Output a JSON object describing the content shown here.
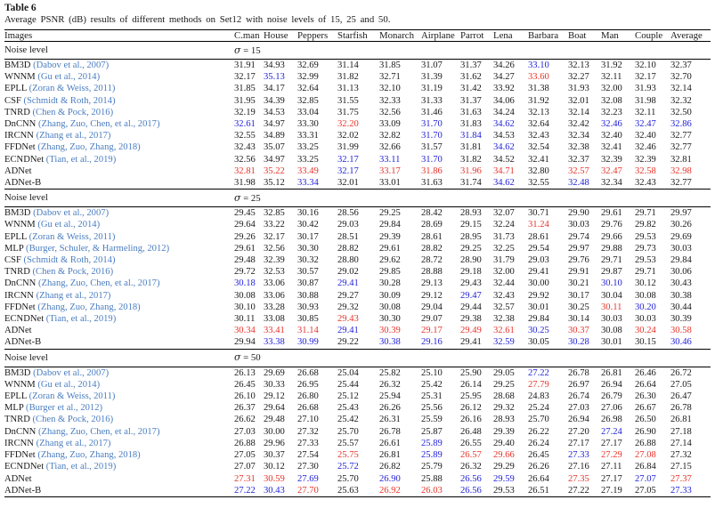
{
  "table": {
    "label": "Table 6",
    "caption": "Average PSNR (dB) results of different methods on Set12 with noise levels of 15, 25 and 50.",
    "noise_label": "Noise level",
    "columns": [
      "Images",
      "C.man",
      "House",
      "Peppers",
      "Starfish",
      "Monarch",
      "Airplane",
      "Parrot",
      "Lena",
      "Barbara",
      "Boat",
      "Man",
      "Couple",
      "Average"
    ],
    "value_colors": {
      "k": "#1a1a1a",
      "b": "#2323d8",
      "r": "#e7352b",
      "citation": "#4a7dc0"
    },
    "sections": [
      {
        "sigma": "σ = 15",
        "rows": [
          {
            "method": "BM3D",
            "cite": "(Dabov et al., 2007)",
            "values": [
              "31.91",
              "34.93",
              "32.69",
              "31.14",
              "31.85",
              "31.07",
              "31.37",
              "34.26",
              "33.10",
              "32.13",
              "31.92",
              "32.10",
              "32.37"
            ],
            "colors": "kkkkkkkkbkkkk"
          },
          {
            "method": "WNNM",
            "cite": "(Gu et al., 2014)",
            "values": [
              "32.17",
              "35.13",
              "32.99",
              "31.82",
              "32.71",
              "31.39",
              "31.62",
              "34.27",
              "33.60",
              "32.27",
              "32.11",
              "32.17",
              "32.70"
            ],
            "colors": "kbkkkkkkrkkkk"
          },
          {
            "method": "EPLL",
            "cite": "(Zoran & Weiss, 2011)",
            "values": [
              "31.85",
              "34.17",
              "32.64",
              "31.13",
              "32.10",
              "31.19",
              "31.42",
              "33.92",
              "31.38",
              "31.93",
              "32.00",
              "31.93",
              "32.14"
            ],
            "colors": "kkkkkkkkkkkkk"
          },
          {
            "method": "CSF",
            "cite": "(Schmidt & Roth, 2014)",
            "values": [
              "31.95",
              "34.39",
              "32.85",
              "31.55",
              "32.33",
              "31.33",
              "31.37",
              "34.06",
              "31.92",
              "32.01",
              "32.08",
              "31.98",
              "32.32"
            ],
            "colors": "kkkkkkkkkkkkk"
          },
          {
            "method": "TNRD",
            "cite": "(Chen & Pock, 2016)",
            "values": [
              "32.19",
              "34.53",
              "33.04",
              "31.75",
              "32.56",
              "31.46",
              "31.63",
              "34.24",
              "32.13",
              "32.14",
              "32.23",
              "32.11",
              "32.50"
            ],
            "colors": "kkkkkkkkkkkkk"
          },
          {
            "method": "DnCNN",
            "cite": "(Zhang, Zuo, Chen, et al., 2017)",
            "values": [
              "32.61",
              "34.97",
              "33.30",
              "32.20",
              "33.09",
              "31.70",
              "31.83",
              "34.62",
              "32.64",
              "32.42",
              "32.46",
              "32.47",
              "32.86"
            ],
            "colors": "bkkrkbkbkkbbb"
          },
          {
            "method": "IRCNN",
            "cite": "(Zhang et al., 2017)",
            "values": [
              "32.55",
              "34.89",
              "33.31",
              "32.02",
              "32.82",
              "31.70",
              "31.84",
              "34.53",
              "32.43",
              "32.34",
              "32.40",
              "32.40",
              "32.77"
            ],
            "colors": "kkkkkbbkkkkkk"
          },
          {
            "method": "FFDNet",
            "cite": "(Zhang, Zuo, Zhang, 2018)",
            "values": [
              "32.43",
              "35.07",
              "33.25",
              "31.99",
              "32.66",
              "31.57",
              "31.81",
              "34.62",
              "32.54",
              "32.38",
              "32.41",
              "32.46",
              "32.77"
            ],
            "colors": "kkkkkkkbkkkkk"
          },
          {
            "method": "ECNDNet",
            "cite": "(Tian, et al., 2019)",
            "values": [
              "32.56",
              "34.97",
              "33.25",
              "32.17",
              "33.11",
              "31.70",
              "31.82",
              "34.52",
              "32.41",
              "32.37",
              "32.39",
              "32.39",
              "32.81"
            ],
            "colors": "kkkbbbkkkkkkk"
          },
          {
            "method": "ADNet",
            "cite": "",
            "values": [
              "32.81",
              "35.22",
              "33.49",
              "32.17",
              "33.17",
              "31.86",
              "31.96",
              "34.71",
              "32.80",
              "32.57",
              "32.47",
              "32.58",
              "32.98"
            ],
            "colors": "rrrbrrrrkrrrr"
          },
          {
            "method": "ADNet-B",
            "cite": "",
            "values": [
              "31.98",
              "35.12",
              "33.34",
              "32.01",
              "33.01",
              "31.63",
              "31.74",
              "34.62",
              "32.55",
              "32.48",
              "32.34",
              "32.43",
              "32.77"
            ],
            "colors": "kkbkkkkbkbkkk"
          }
        ]
      },
      {
        "sigma": "σ = 25",
        "rows": [
          {
            "method": "BM3D",
            "cite": "(Dabov et al., 2007)",
            "values": [
              "29.45",
              "32.85",
              "30.16",
              "28.56",
              "29.25",
              "28.42",
              "28.93",
              "32.07",
              "30.71",
              "29.90",
              "29.61",
              "29.71",
              "29.97"
            ],
            "colors": "kkkkkkkkkkkkk"
          },
          {
            "method": "WNNM",
            "cite": "(Gu et al., 2014)",
            "values": [
              "29.64",
              "33.22",
              "30.42",
              "29.03",
              "29.84",
              "28.69",
              "29.15",
              "32.24",
              "31.24",
              "30.03",
              "29.76",
              "29.82",
              "30.26"
            ],
            "colors": "kkkkkkkkrkkkk"
          },
          {
            "method": "EPLL",
            "cite": "(Zoran & Weiss, 2011)",
            "values": [
              "29.26",
              "32.17",
              "30.17",
              "28.51",
              "29.39",
              "28.61",
              "28.95",
              "31.73",
              "28.61",
              "29.74",
              "29.66",
              "29.53",
              "29.69"
            ],
            "colors": "kkkkkkkkkkkkk"
          },
          {
            "method": "MLP",
            "cite": "(Burger, Schuler, & Harmeling, 2012)",
            "values": [
              "29.61",
              "32.56",
              "30.30",
              "28.82",
              "29.61",
              "28.82",
              "29.25",
              "32.25",
              "29.54",
              "29.97",
              "29.88",
              "29.73",
              "30.03"
            ],
            "colors": "kkkkkkkkkkkkk"
          },
          {
            "method": "CSF",
            "cite": "(Schmidt & Roth, 2014)",
            "values": [
              "29.48",
              "32.39",
              "30.32",
              "28.80",
              "29.62",
              "28.72",
              "28.90",
              "31.79",
              "29.03",
              "29.76",
              "29.71",
              "29.53",
              "29.84"
            ],
            "colors": "kkkkkkkkkkkkk"
          },
          {
            "method": "TNRD",
            "cite": "(Chen & Pock, 2016)",
            "values": [
              "29.72",
              "32.53",
              "30.57",
              "29.02",
              "29.85",
              "28.88",
              "29.18",
              "32.00",
              "29.41",
              "29.91",
              "29.87",
              "29.71",
              "30.06"
            ],
            "colors": "kkkkkkkkkkkkk"
          },
          {
            "method": "DnCNN",
            "cite": "(Zhang, Zuo, Chen, et al., 2017)",
            "values": [
              "30.18",
              "33.06",
              "30.87",
              "29.41",
              "30.28",
              "29.13",
              "29.43",
              "32.44",
              "30.00",
              "30.21",
              "30.10",
              "30.12",
              "30.43"
            ],
            "colors": "bkkbkkkkkkbkk"
          },
          {
            "method": "IRCNN",
            "cite": "(Zhang et al., 2017)",
            "values": [
              "30.08",
              "33.06",
              "30.88",
              "29.27",
              "30.09",
              "29.12",
              "29.47",
              "32.43",
              "29.92",
              "30.17",
              "30.04",
              "30.08",
              "30.38"
            ],
            "colors": "kkkkkkbkkkkkk"
          },
          {
            "method": "FFDNet",
            "cite": "(Zhang, Zuo, Zhang, 2018)",
            "values": [
              "30.10",
              "33.28",
              "30.93",
              "29.32",
              "30.08",
              "29.04",
              "29.44",
              "32.57",
              "30.01",
              "30.25",
              "30.11",
              "30.20",
              "30.44"
            ],
            "colors": "kkkkkkkkkkrbk"
          },
          {
            "method": "ECNDNet",
            "cite": "(Tian, et al., 2019)",
            "values": [
              "30.11",
              "33.08",
              "30.85",
              "29.43",
              "30.30",
              "29.07",
              "29.38",
              "32.38",
              "29.84",
              "30.14",
              "30.03",
              "30.03",
              "30.39"
            ],
            "colors": "kkkrkkkkkkkkk"
          },
          {
            "method": "ADNet",
            "cite": "",
            "values": [
              "30.34",
              "33.41",
              "31.14",
              "29.41",
              "30.39",
              "29.17",
              "29.49",
              "32.61",
              "30.25",
              "30.37",
              "30.08",
              "30.24",
              "30.58"
            ],
            "colors": "rrrbrrrrbrkrr"
          },
          {
            "method": "ADNet-B",
            "cite": "",
            "values": [
              "29.94",
              "33.38",
              "30.99",
              "29.22",
              "30.38",
              "29.16",
              "29.41",
              "32.59",
              "30.05",
              "30.28",
              "30.01",
              "30.15",
              "30.46"
            ],
            "colors": "kbbkbbkbkbkkb"
          }
        ]
      },
      {
        "sigma": "σ = 50",
        "rows": [
          {
            "method": "BM3D",
            "cite": "(Dabov et al., 2007)",
            "values": [
              "26.13",
              "29.69",
              "26.68",
              "25.04",
              "25.82",
              "25.10",
              "25.90",
              "29.05",
              "27.22",
              "26.78",
              "26.81",
              "26.46",
              "26.72"
            ],
            "colors": "kkkkkkkkbkkkk"
          },
          {
            "method": "WNNM",
            "cite": "(Gu et al., 2014)",
            "values": [
              "26.45",
              "30.33",
              "26.95",
              "25.44",
              "26.32",
              "25.42",
              "26.14",
              "29.25",
              "27.79",
              "26.97",
              "26.94",
              "26.64",
              "27.05"
            ],
            "colors": "kkkkkkkkrkkkk"
          },
          {
            "method": "EPLL",
            "cite": "(Zoran & Weiss, 2011)",
            "values": [
              "26.10",
              "29.12",
              "26.80",
              "25.12",
              "25.94",
              "25.31",
              "25.95",
              "28.68",
              "24.83",
              "26.74",
              "26.79",
              "26.30",
              "26.47"
            ],
            "colors": "kkkkkkkkkkkkk"
          },
          {
            "method": "MLP",
            "cite": "(Burger et al., 2012)",
            "values": [
              "26.37",
              "29.64",
              "26.68",
              "25.43",
              "26.26",
              "25.56",
              "26.12",
              "29.32",
              "25.24",
              "27.03",
              "27.06",
              "26.67",
              "26.78"
            ],
            "colors": "kkkkkkkkkkkkk"
          },
          {
            "method": "TNRD",
            "cite": "(Chen & Pock, 2016)",
            "values": [
              "26.62",
              "29.48",
              "27.10",
              "25.42",
              "26.31",
              "25.59",
              "26.16",
              "28.93",
              "25.70",
              "26.94",
              "26.98",
              "26.50",
              "26.81"
            ],
            "colors": "kkkkkkkkkkkkk"
          },
          {
            "method": "DnCNN",
            "cite": "(Zhang, Zuo, Chen, et al., 2017)",
            "values": [
              "27.03",
              "30.00",
              "27.32",
              "25.70",
              "26.78",
              "25.87",
              "26.48",
              "29.39",
              "26.22",
              "27.20",
              "27.24",
              "26.90",
              "27.18"
            ],
            "colors": "kkkkkkkkkkbkk"
          },
          {
            "method": "IRCNN",
            "cite": "(Zhang et al., 2017)",
            "values": [
              "26.88",
              "29.96",
              "27.33",
              "25.57",
              "26.61",
              "25.89",
              "26.55",
              "29.40",
              "26.24",
              "27.17",
              "27.17",
              "26.88",
              "27.14"
            ],
            "colors": "kkkkkbkkkkkkk"
          },
          {
            "method": "FFDNet",
            "cite": "(Zhang, Zuo, Zhang, 2018)",
            "values": [
              "27.05",
              "30.37",
              "27.54",
              "25.75",
              "26.81",
              "25.89",
              "26.57",
              "29.66",
              "26.45",
              "27.33",
              "27.29",
              "27.08",
              "27.32"
            ],
            "colors": "kkkrkbrrkbrrk"
          },
          {
            "method": "ECNDNet",
            "cite": "(Tian, et al., 2019)",
            "values": [
              "27.07",
              "30.12",
              "27.30",
              "25.72",
              "26.82",
              "25.79",
              "26.32",
              "29.29",
              "26.26",
              "27.16",
              "27.11",
              "26.84",
              "27.15"
            ],
            "colors": "kkkbkkkkkkkkk"
          },
          {
            "method": "ADNet",
            "cite": "",
            "values": [
              "27.31",
              "30.59",
              "27.69",
              "25.70",
              "26.90",
              "25.88",
              "26.56",
              "29.59",
              "26.64",
              "27.35",
              "27.17",
              "27.07",
              "27.37"
            ],
            "colors": "rrbkbkbbkrkbr"
          },
          {
            "method": "ADNet-B",
            "cite": "",
            "values": [
              "27.22",
              "30.43",
              "27.70",
              "25.63",
              "26.92",
              "26.03",
              "26.56",
              "29.53",
              "26.51",
              "27.22",
              "27.19",
              "27.05",
              "27.33"
            ],
            "colors": "bbrkrrbkkkkkb"
          }
        ]
      }
    ]
  }
}
